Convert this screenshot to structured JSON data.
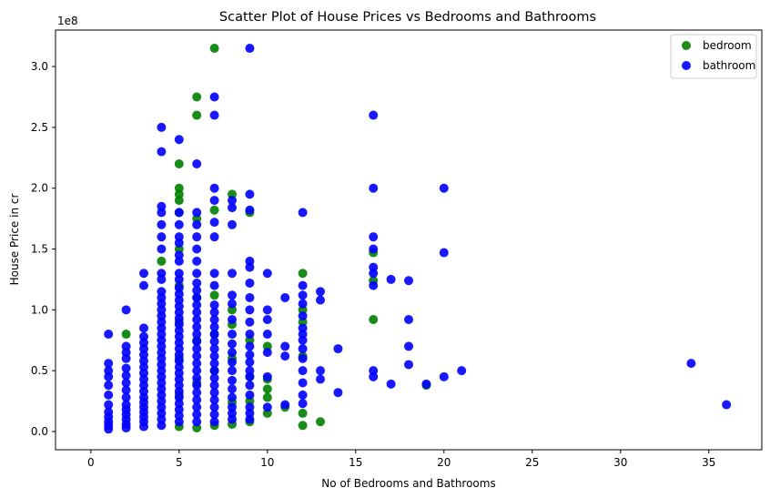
{
  "chart_data": {
    "type": "scatter",
    "title": "Scatter Plot of House Prices vs Bedrooms and Bathrooms",
    "xlabel": "No of Bedrooms and Bathrooms",
    "ylabel": "House Price in cr",
    "y_offset_text": "1e8",
    "xlim": [
      -2,
      38
    ],
    "ylim": [
      -0.15,
      3.3
    ],
    "y_scale_factor": 100000000,
    "x_ticks": [
      0,
      5,
      10,
      15,
      20,
      25,
      30,
      35
    ],
    "x_tick_labels": [
      "0",
      "5",
      "10",
      "15",
      "20",
      "25",
      "30",
      "35"
    ],
    "y_ticks": [
      0,
      0.5,
      1.0,
      1.5,
      2.0,
      2.5,
      3.0
    ],
    "y_tick_labels": [
      "0.0",
      "0.5",
      "1.0",
      "1.5",
      "2.0",
      "2.5",
      "3.0"
    ],
    "grid": false,
    "legend_position": "top-right",
    "series": [
      {
        "name": "bedroom",
        "color": "#008000",
        "points": [
          [
            5,
            0.04
          ],
          [
            5,
            0.3
          ],
          [
            5,
            0.6
          ],
          [
            5,
            0.9
          ],
          [
            5,
            1.2
          ],
          [
            5,
            1.5
          ],
          [
            5,
            1.8
          ],
          [
            5,
            1.9
          ],
          [
            5,
            1.95
          ],
          [
            5,
            2.0
          ],
          [
            5,
            2.2
          ],
          [
            6,
            0.03
          ],
          [
            6,
            0.4
          ],
          [
            6,
            0.75
          ],
          [
            6,
            1.1
          ],
          [
            6,
            1.75
          ],
          [
            6,
            2.6
          ],
          [
            6,
            2.75
          ],
          [
            7,
            0.05
          ],
          [
            7,
            0.5
          ],
          [
            7,
            0.8
          ],
          [
            7,
            1.12
          ],
          [
            7,
            1.82
          ],
          [
            7,
            3.15
          ],
          [
            8,
            0.06
          ],
          [
            8,
            0.24
          ],
          [
            8,
            0.6
          ],
          [
            8,
            0.88
          ],
          [
            8,
            1.0
          ],
          [
            8,
            1.95
          ],
          [
            9,
            0.08
          ],
          [
            9,
            0.25
          ],
          [
            9,
            0.45
          ],
          [
            9,
            0.75
          ],
          [
            9,
            1.8
          ],
          [
            10,
            0.15
          ],
          [
            10,
            0.28
          ],
          [
            10,
            0.35
          ],
          [
            10,
            0.43
          ],
          [
            10,
            0.7
          ],
          [
            11,
            0.2
          ],
          [
            12,
            0.05
          ],
          [
            12,
            0.15
          ],
          [
            12,
            0.62
          ],
          [
            12,
            0.9
          ],
          [
            12,
            1.0
          ],
          [
            12,
            1.3
          ],
          [
            13,
            0.08
          ],
          [
            16,
            0.92
          ],
          [
            16,
            1.24
          ],
          [
            16,
            1.47
          ],
          [
            4,
            1.4
          ],
          [
            2,
            0.8
          ],
          [
            19,
            0.38
          ]
        ]
      },
      {
        "name": "bathroom",
        "color": "#0000ff",
        "points": [
          [
            1,
            0.02
          ],
          [
            1,
            0.05
          ],
          [
            1,
            0.08
          ],
          [
            1,
            0.12
          ],
          [
            1,
            0.16
          ],
          [
            1,
            0.22
          ],
          [
            1,
            0.3
          ],
          [
            1,
            0.38
          ],
          [
            1,
            0.45
          ],
          [
            1,
            0.5
          ],
          [
            1,
            0.56
          ],
          [
            1,
            0.8
          ],
          [
            2,
            0.03
          ],
          [
            2,
            0.06
          ],
          [
            2,
            0.1
          ],
          [
            2,
            0.14
          ],
          [
            2,
            0.18
          ],
          [
            2,
            0.22
          ],
          [
            2,
            0.28
          ],
          [
            2,
            0.34
          ],
          [
            2,
            0.4
          ],
          [
            2,
            0.46
          ],
          [
            2,
            0.52
          ],
          [
            2,
            0.6
          ],
          [
            2,
            0.65
          ],
          [
            2,
            0.7
          ],
          [
            2,
            1.0
          ],
          [
            3,
            0.04
          ],
          [
            3,
            0.08
          ],
          [
            3,
            0.12
          ],
          [
            3,
            0.16
          ],
          [
            3,
            0.2
          ],
          [
            3,
            0.24
          ],
          [
            3,
            0.28
          ],
          [
            3,
            0.33
          ],
          [
            3,
            0.38
          ],
          [
            3,
            0.43
          ],
          [
            3,
            0.48
          ],
          [
            3,
            0.53
          ],
          [
            3,
            0.58
          ],
          [
            3,
            0.63
          ],
          [
            3,
            0.68
          ],
          [
            3,
            0.73
          ],
          [
            3,
            0.78
          ],
          [
            3,
            0.85
          ],
          [
            3,
            1.2
          ],
          [
            3,
            1.3
          ],
          [
            4,
            0.05
          ],
          [
            4,
            0.1
          ],
          [
            4,
            0.15
          ],
          [
            4,
            0.2
          ],
          [
            4,
            0.25
          ],
          [
            4,
            0.3
          ],
          [
            4,
            0.35
          ],
          [
            4,
            0.4
          ],
          [
            4,
            0.45
          ],
          [
            4,
            0.5
          ],
          [
            4,
            0.55
          ],
          [
            4,
            0.6
          ],
          [
            4,
            0.65
          ],
          [
            4,
            0.7
          ],
          [
            4,
            0.75
          ],
          [
            4,
            0.8
          ],
          [
            4,
            0.85
          ],
          [
            4,
            0.9
          ],
          [
            4,
            0.95
          ],
          [
            4,
            1.0
          ],
          [
            4,
            1.05
          ],
          [
            4,
            1.1
          ],
          [
            4,
            1.15
          ],
          [
            4,
            1.25
          ],
          [
            4,
            1.3
          ],
          [
            4,
            1.5
          ],
          [
            4,
            1.6
          ],
          [
            4,
            1.7
          ],
          [
            4,
            1.8
          ],
          [
            4,
            1.85
          ],
          [
            4,
            2.3
          ],
          [
            4,
            2.5
          ],
          [
            5,
            0.08
          ],
          [
            5,
            0.13
          ],
          [
            5,
            0.18
          ],
          [
            5,
            0.23
          ],
          [
            5,
            0.28
          ],
          [
            5,
            0.33
          ],
          [
            5,
            0.38
          ],
          [
            5,
            0.43
          ],
          [
            5,
            0.48
          ],
          [
            5,
            0.53
          ],
          [
            5,
            0.58
          ],
          [
            5,
            0.63
          ],
          [
            5,
            0.68
          ],
          [
            5,
            0.73
          ],
          [
            5,
            0.78
          ],
          [
            5,
            0.83
          ],
          [
            5,
            0.88
          ],
          [
            5,
            0.93
          ],
          [
            5,
            0.98
          ],
          [
            5,
            1.03
          ],
          [
            5,
            1.08
          ],
          [
            5,
            1.13
          ],
          [
            5,
            1.18
          ],
          [
            5,
            1.25
          ],
          [
            5,
            1.3
          ],
          [
            5,
            1.4
          ],
          [
            5,
            1.45
          ],
          [
            5,
            1.55
          ],
          [
            5,
            1.6
          ],
          [
            5,
            1.7
          ],
          [
            5,
            1.8
          ],
          [
            5,
            2.4
          ],
          [
            6,
            0.08
          ],
          [
            6,
            0.14
          ],
          [
            6,
            0.2
          ],
          [
            6,
            0.26
          ],
          [
            6,
            0.32
          ],
          [
            6,
            0.38
          ],
          [
            6,
            0.44
          ],
          [
            6,
            0.5
          ],
          [
            6,
            0.56
          ],
          [
            6,
            0.62
          ],
          [
            6,
            0.68
          ],
          [
            6,
            0.74
          ],
          [
            6,
            0.8
          ],
          [
            6,
            0.86
          ],
          [
            6,
            0.92
          ],
          [
            6,
            0.98
          ],
          [
            6,
            1.04
          ],
          [
            6,
            1.1
          ],
          [
            6,
            1.16
          ],
          [
            6,
            1.22
          ],
          [
            6,
            1.3
          ],
          [
            6,
            1.4
          ],
          [
            6,
            1.5
          ],
          [
            6,
            1.6
          ],
          [
            6,
            1.7
          ],
          [
            6,
            1.8
          ],
          [
            6,
            2.2
          ],
          [
            7,
            0.08
          ],
          [
            7,
            0.14
          ],
          [
            7,
            0.2
          ],
          [
            7,
            0.26
          ],
          [
            7,
            0.32
          ],
          [
            7,
            0.38
          ],
          [
            7,
            0.44
          ],
          [
            7,
            0.5
          ],
          [
            7,
            0.56
          ],
          [
            7,
            0.62
          ],
          [
            7,
            0.68
          ],
          [
            7,
            0.74
          ],
          [
            7,
            0.8
          ],
          [
            7,
            0.86
          ],
          [
            7,
            0.92
          ],
          [
            7,
            0.98
          ],
          [
            7,
            1.04
          ],
          [
            7,
            1.2
          ],
          [
            7,
            1.3
          ],
          [
            7,
            1.6
          ],
          [
            7,
            1.72
          ],
          [
            7,
            1.9
          ],
          [
            7,
            2.0
          ],
          [
            7,
            2.6
          ],
          [
            7,
            2.75
          ],
          [
            8,
            0.1
          ],
          [
            8,
            0.15
          ],
          [
            8,
            0.2
          ],
          [
            8,
            0.28
          ],
          [
            8,
            0.35
          ],
          [
            8,
            0.42
          ],
          [
            8,
            0.5
          ],
          [
            8,
            0.57
          ],
          [
            8,
            0.65
          ],
          [
            8,
            0.72
          ],
          [
            8,
            0.8
          ],
          [
            8,
            0.92
          ],
          [
            8,
            1.05
          ],
          [
            8,
            1.12
          ],
          [
            8,
            1.3
          ],
          [
            8,
            1.7
          ],
          [
            8,
            1.84
          ],
          [
            8,
            1.9
          ],
          [
            9,
            0.1
          ],
          [
            9,
            0.15
          ],
          [
            9,
            0.2
          ],
          [
            9,
            0.3
          ],
          [
            9,
            0.38
          ],
          [
            9,
            0.45
          ],
          [
            9,
            0.5
          ],
          [
            9,
            0.57
          ],
          [
            9,
            0.63
          ],
          [
            9,
            0.7
          ],
          [
            9,
            0.8
          ],
          [
            9,
            0.9
          ],
          [
            9,
            1.0
          ],
          [
            9,
            1.1
          ],
          [
            9,
            1.22
          ],
          [
            9,
            1.35
          ],
          [
            9,
            1.4
          ],
          [
            9,
            1.82
          ],
          [
            9,
            1.95
          ],
          [
            9,
            3.15
          ],
          [
            10,
            0.2
          ],
          [
            10,
            0.45
          ],
          [
            10,
            0.65
          ],
          [
            10,
            0.8
          ],
          [
            10,
            0.92
          ],
          [
            10,
            1.0
          ],
          [
            10,
            1.3
          ],
          [
            11,
            0.22
          ],
          [
            11,
            0.62
          ],
          [
            11,
            0.7
          ],
          [
            11,
            1.1
          ],
          [
            12,
            0.23
          ],
          [
            12,
            0.3
          ],
          [
            12,
            0.4
          ],
          [
            12,
            0.5
          ],
          [
            12,
            0.6
          ],
          [
            12,
            0.68
          ],
          [
            12,
            0.75
          ],
          [
            12,
            0.8
          ],
          [
            12,
            0.85
          ],
          [
            12,
            0.95
          ],
          [
            12,
            1.05
          ],
          [
            12,
            1.12
          ],
          [
            12,
            1.2
          ],
          [
            12,
            1.8
          ],
          [
            13,
            0.43
          ],
          [
            13,
            0.5
          ],
          [
            13,
            1.08
          ],
          [
            13,
            1.15
          ],
          [
            14,
            0.32
          ],
          [
            14,
            0.68
          ],
          [
            16,
            0.45
          ],
          [
            16,
            0.5
          ],
          [
            16,
            1.2
          ],
          [
            16,
            1.3
          ],
          [
            16,
            1.35
          ],
          [
            16,
            1.5
          ],
          [
            16,
            1.6
          ],
          [
            16,
            2.0
          ],
          [
            16,
            2.6
          ],
          [
            17,
            0.39
          ],
          [
            17,
            1.25
          ],
          [
            18,
            0.55
          ],
          [
            18,
            0.7
          ],
          [
            18,
            0.92
          ],
          [
            18,
            1.24
          ],
          [
            19,
            0.39
          ],
          [
            20,
            0.45
          ],
          [
            20,
            1.47
          ],
          [
            20,
            2.0
          ],
          [
            21,
            0.5
          ],
          [
            34,
            0.56
          ],
          [
            36,
            0.22
          ]
        ]
      }
    ]
  }
}
